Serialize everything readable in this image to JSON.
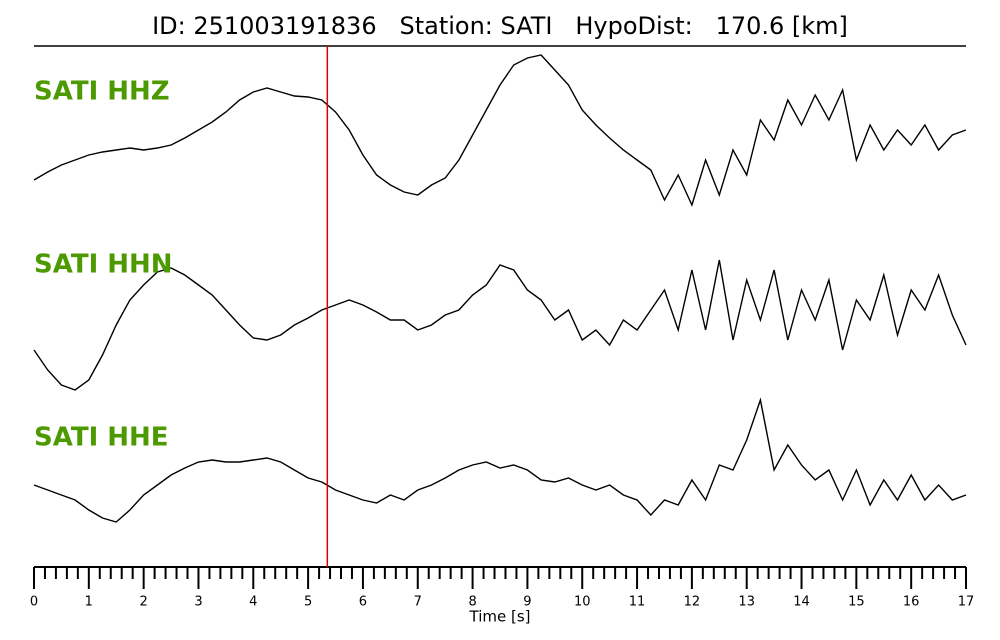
{
  "chart_data": {
    "type": "line",
    "title": "ID: 251003191836   Station: SATI   HypoDist:   170.6 [km]",
    "xlabel": "Time [s]",
    "label_color": "#4c9a00",
    "pick": 5.35,
    "pick_color": "#e00000",
    "x": [
      0,
      0.25,
      0.5,
      0.75,
      1,
      1.25,
      1.5,
      1.75,
      2,
      2.25,
      2.5,
      2.75,
      3,
      3.25,
      3.5,
      3.75,
      4,
      4.25,
      4.5,
      4.75,
      5,
      5.25,
      5.5,
      5.75,
      6,
      6.25,
      6.5,
      6.75,
      7,
      7.25,
      7.5,
      7.75,
      8,
      8.25,
      8.5,
      8.75,
      9,
      9.25,
      9.5,
      9.75,
      10,
      10.25,
      10.5,
      10.75,
      11,
      11.25,
      11.5,
      11.75,
      12,
      12.25,
      12.5,
      12.75,
      13,
      13.25,
      13.5,
      13.75,
      14,
      14.25,
      14.5,
      14.75,
      15,
      15.25,
      15.5,
      15.75,
      16,
      16.25,
      16.5,
      16.75,
      17
    ],
    "series": [
      {
        "name": "SATI HHZ",
        "color": "#000000",
        "values": [
          -45,
          -37,
          -30,
          -25,
          -20,
          -17,
          -15,
          -13,
          -15,
          -13,
          -10,
          -3,
          5,
          13,
          23,
          35,
          43,
          47,
          43,
          39,
          38,
          35,
          23,
          5,
          -20,
          -40,
          -50,
          -57,
          -60,
          -50,
          -43,
          -25,
          0,
          25,
          50,
          70,
          77,
          80,
          65,
          50,
          25,
          10,
          -3,
          -15,
          -25,
          -35,
          -65,
          -40,
          -70,
          -25,
          -60,
          -15,
          -40,
          15,
          -5,
          35,
          10,
          40,
          15,
          45,
          -25,
          10,
          -15,
          5,
          -10,
          10,
          -15,
          0,
          5
        ]
      },
      {
        "name": "SATI HHN",
        "color": "#000000",
        "values": [
          -40,
          -60,
          -75,
          -80,
          -70,
          -45,
          -15,
          10,
          25,
          38,
          42,
          35,
          25,
          15,
          0,
          -15,
          -28,
          -30,
          -25,
          -15,
          -8,
          0,
          5,
          10,
          5,
          -2,
          -10,
          -10,
          -20,
          -15,
          -5,
          0,
          15,
          25,
          45,
          40,
          20,
          10,
          -10,
          0,
          -30,
          -20,
          -35,
          -10,
          -20,
          0,
          20,
          -20,
          40,
          -20,
          50,
          -30,
          30,
          -10,
          40,
          -30,
          20,
          -10,
          30,
          -40,
          10,
          -10,
          35,
          -25,
          20,
          0,
          35,
          -5,
          -35
        ]
      },
      {
        "name": "SATI HHE",
        "color": "#000000",
        "values": [
          5,
          0,
          -5,
          -10,
          -20,
          -28,
          -32,
          -20,
          -5,
          5,
          15,
          22,
          28,
          30,
          28,
          28,
          30,
          32,
          28,
          20,
          12,
          8,
          0,
          -5,
          -10,
          -13,
          -5,
          -10,
          0,
          5,
          12,
          20,
          25,
          28,
          22,
          25,
          20,
          10,
          8,
          12,
          5,
          0,
          5,
          -5,
          -10,
          -25,
          -10,
          -15,
          10,
          -10,
          25,
          20,
          50,
          90,
          20,
          45,
          25,
          10,
          20,
          -10,
          20,
          -15,
          10,
          -10,
          15,
          -10,
          5,
          -10,
          -5
        ]
      }
    ],
    "xlim": [
      0,
      17
    ],
    "xticks": [
      0,
      1,
      2,
      3,
      4,
      5,
      6,
      7,
      8,
      9,
      10,
      11,
      12,
      13,
      14,
      15,
      16,
      17
    ],
    "xminorticks": [
      0.2,
      0.4,
      0.6,
      0.8,
      1.2,
      1.4,
      1.6,
      1.8,
      2.2,
      2.4,
      2.6,
      2.8,
      3.2,
      3.4,
      3.6,
      3.8,
      4.2,
      4.4,
      4.6,
      4.8,
      5.2,
      5.4,
      5.6,
      5.8,
      6.2,
      6.4,
      6.6,
      6.8,
      7.2,
      7.4,
      7.6,
      7.8,
      8.2,
      8.4,
      8.6,
      8.8,
      9.2,
      9.4,
      9.6,
      9.8,
      10.2,
      10.4,
      10.6,
      10.8,
      11.2,
      11.4,
      11.6,
      11.8,
      12.2,
      12.4,
      12.6,
      12.8,
      13.2,
      13.4,
      13.6,
      13.8,
      14.2,
      14.4,
      14.6,
      14.8,
      15.2,
      15.4,
      15.6,
      15.8,
      16.2,
      16.4,
      16.6,
      16.8
    ]
  }
}
